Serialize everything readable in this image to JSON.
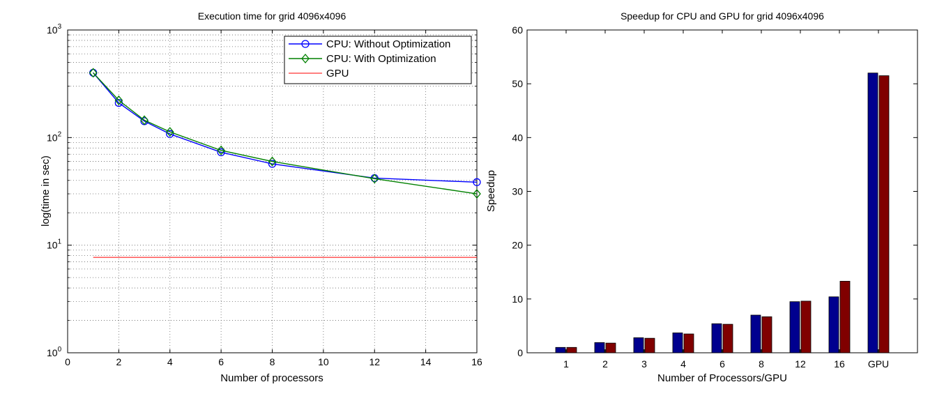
{
  "chart_data": [
    {
      "type": "line",
      "title": "Execution time for grid 4096x4096",
      "xlabel": "Number of processors",
      "ylabel": "log(time in sec)",
      "xlim": [
        0,
        16
      ],
      "ylim": [
        1,
        1000
      ],
      "yscale": "log",
      "grid": true,
      "legend_position": "top-right",
      "x_ticks": [
        0,
        2,
        4,
        6,
        8,
        10,
        12,
        14,
        16
      ],
      "y_ticks": [
        {
          "base": "10",
          "exp": "0",
          "value": 1
        },
        {
          "base": "10",
          "exp": "1",
          "value": 10
        },
        {
          "base": "10",
          "exp": "2",
          "value": 100
        },
        {
          "base": "10",
          "exp": "3",
          "value": 1000
        }
      ],
      "series": [
        {
          "name": "CPU: Without Optimization",
          "color": "#0000ff",
          "marker": "circle",
          "x": [
            1,
            2,
            3,
            4,
            6,
            8,
            12,
            16
          ],
          "y": [
            400,
            210,
            142,
            108,
            73,
            57,
            42,
            38.5
          ]
        },
        {
          "name": "CPU: With Optimization",
          "color": "#008000",
          "marker": "diamond",
          "x": [
            1,
            2,
            3,
            4,
            6,
            8,
            12,
            16
          ],
          "y": [
            400,
            222,
            145,
            113,
            76,
            60,
            41.5,
            30
          ]
        },
        {
          "name": "GPU",
          "color": "#ff0000",
          "marker": "none",
          "x": [
            1,
            16
          ],
          "y": [
            7.7,
            7.7
          ]
        }
      ]
    },
    {
      "type": "bar",
      "title": "Speedup for CPU and GPU for grid 4096x4096",
      "xlabel": "Number of Processors/GPU",
      "ylabel": "Speedup",
      "ylim": [
        0,
        60
      ],
      "y_ticks": [
        0,
        10,
        20,
        30,
        40,
        50,
        60
      ],
      "grid": false,
      "categories": [
        "1",
        "2",
        "3",
        "4",
        "6",
        "8",
        "12",
        "16",
        "GPU"
      ],
      "series": [
        {
          "color": "#00008f",
          "values": [
            1.0,
            1.9,
            2.8,
            3.7,
            5.4,
            7.0,
            9.5,
            10.4,
            52.0
          ]
        },
        {
          "color": "#800000",
          "values": [
            1.0,
            1.8,
            2.7,
            3.5,
            5.3,
            6.7,
            9.6,
            13.3,
            51.5
          ]
        }
      ]
    }
  ]
}
